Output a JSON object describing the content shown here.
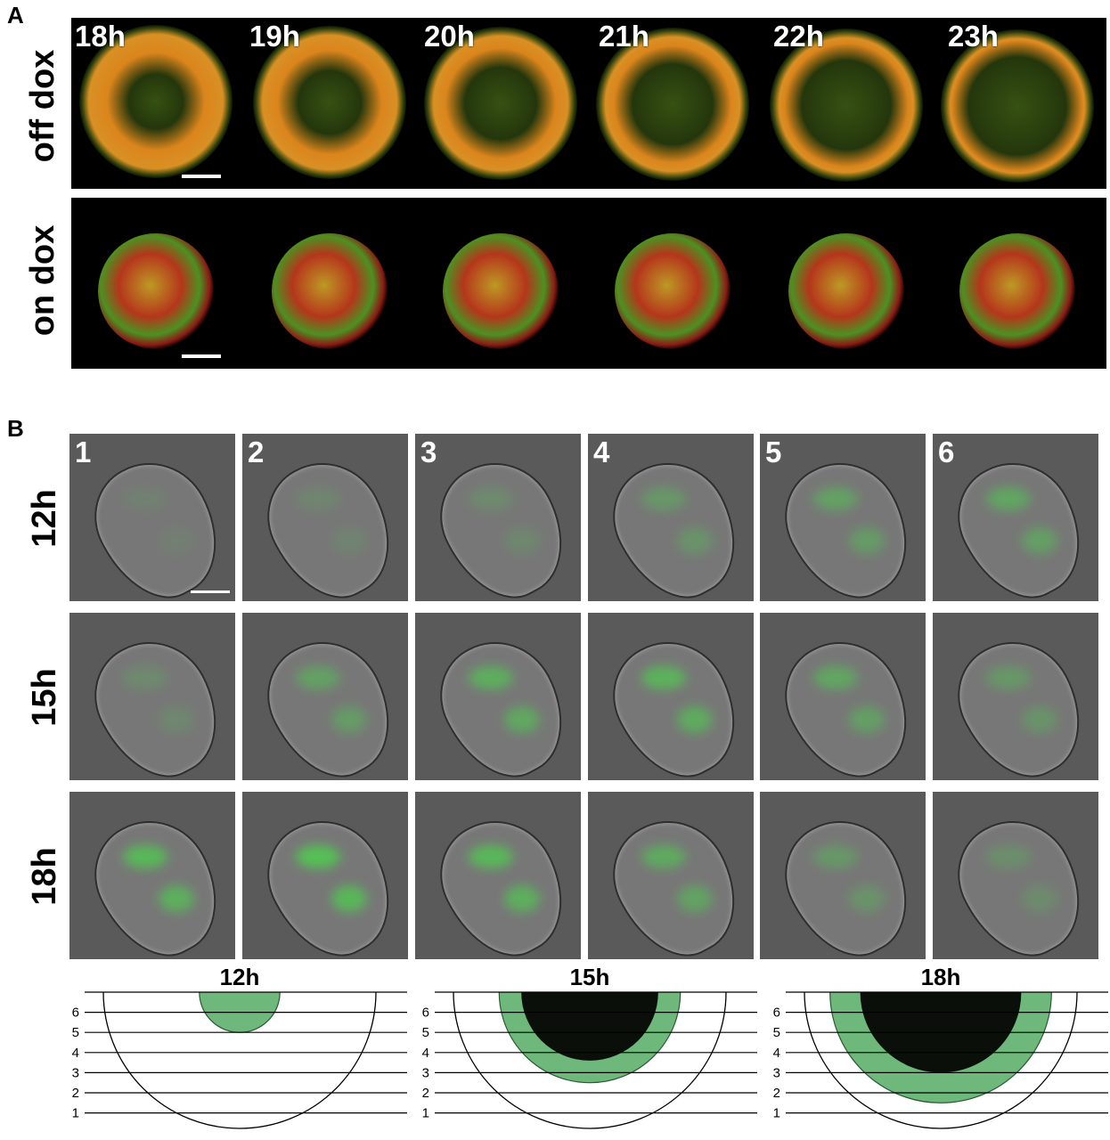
{
  "panelA": {
    "letter": "A",
    "rows": [
      {
        "label": "off dox",
        "palette": "orange"
      },
      {
        "label": "on dox",
        "palette": "redgreen"
      }
    ],
    "times": [
      "18h",
      "19h",
      "20h",
      "21h",
      "22h",
      "23h"
    ]
  },
  "panelB": {
    "letter": "B",
    "columns": [
      "1",
      "2",
      "3",
      "4",
      "5",
      "6"
    ],
    "rows": [
      {
        "label": "12h",
        "glow": [
          0.1,
          0.15,
          0.2,
          0.35,
          0.45,
          0.5
        ]
      },
      {
        "label": "15h",
        "glow": [
          0.2,
          0.45,
          0.6,
          0.65,
          0.5,
          0.35
        ]
      },
      {
        "label": "18h",
        "glow": [
          0.7,
          0.8,
          0.7,
          0.55,
          0.35,
          0.25
        ]
      }
    ]
  },
  "diagrams": [
    {
      "title": "12h",
      "section_labels": [
        "6",
        "5",
        "4",
        "3",
        "2",
        "1"
      ],
      "green_depth_sections": 2,
      "black_depth_sections": 0
    },
    {
      "title": "15h",
      "section_labels": [
        "6",
        "5",
        "4",
        "3",
        "2",
        "1"
      ],
      "green_depth_sections": 4.5,
      "black_depth_sections": 3.4
    },
    {
      "title": "18h",
      "section_labels": [
        "6",
        "5",
        "4",
        "3",
        "2",
        "1"
      ],
      "green_depth_sections": 5.5,
      "black_depth_sections": 4
    }
  ]
}
